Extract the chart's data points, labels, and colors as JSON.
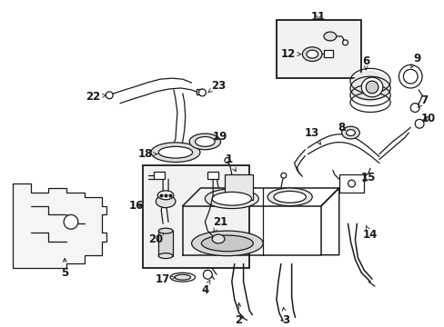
{
  "background_color": "#ffffff",
  "fig_width": 4.89,
  "fig_height": 3.6,
  "dpi": 100,
  "line_color": "#1a1a1a",
  "label_fontsize": 8.5,
  "label_fontweight": "bold",
  "arrow_lw": 0.6,
  "arrow_ms": 7
}
